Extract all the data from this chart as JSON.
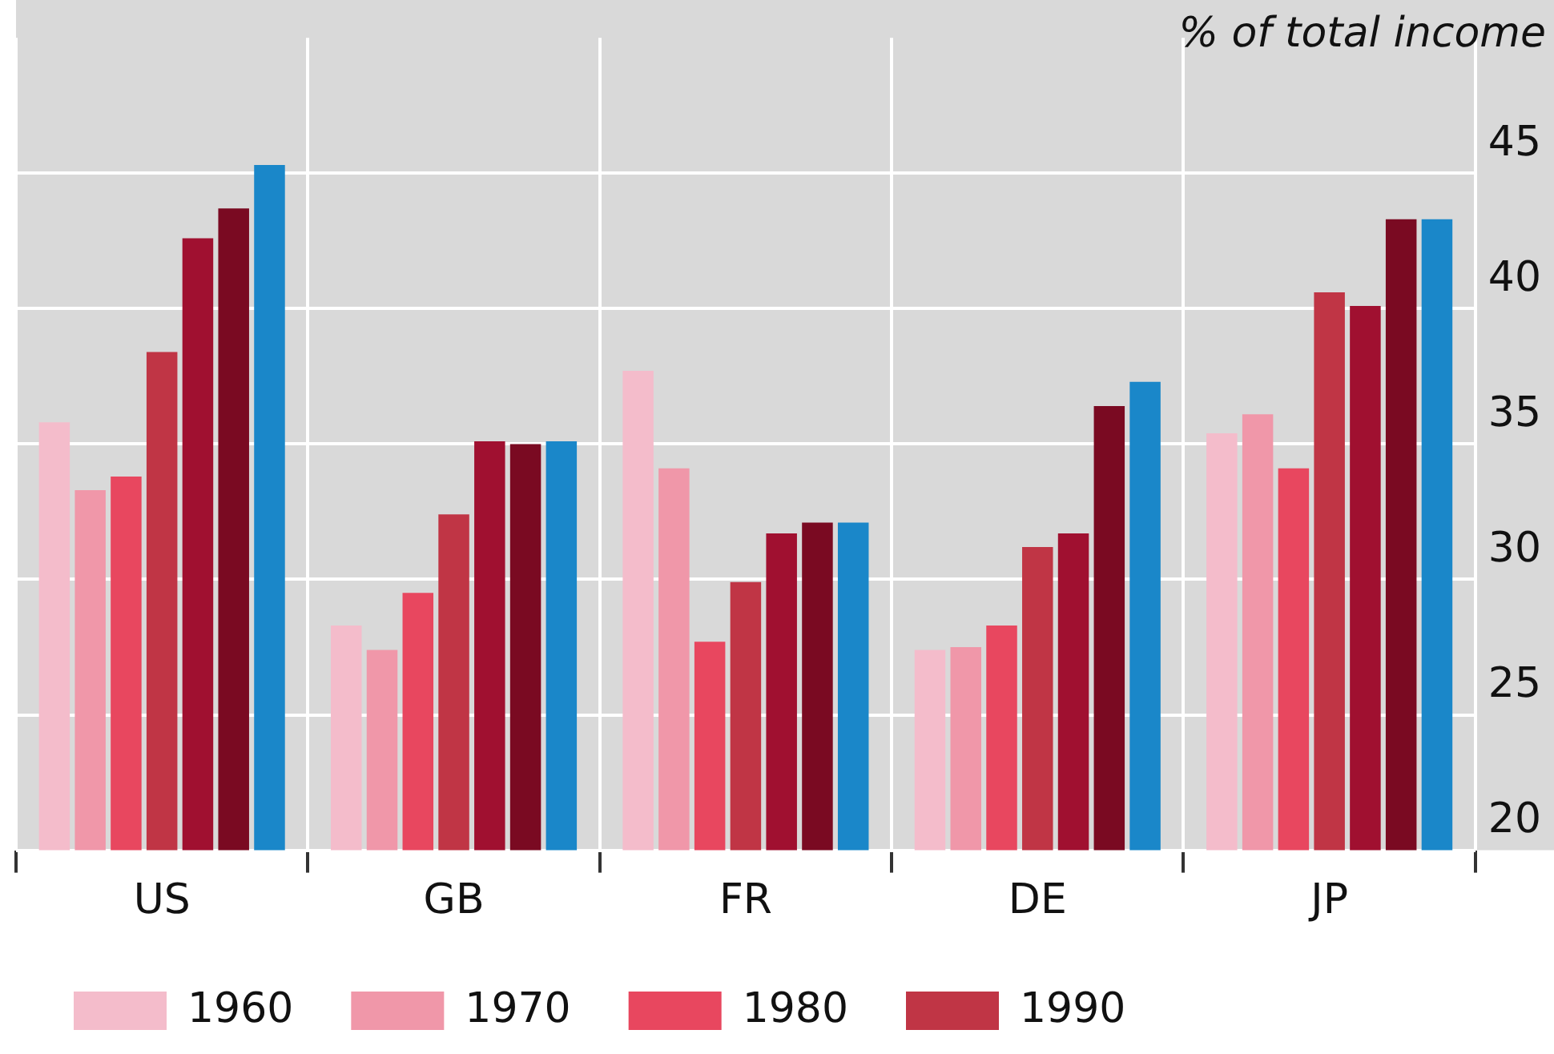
{
  "chart_data": {
    "type": "bar",
    "ylabel": "% of total income",
    "categories": [
      "US",
      "GB",
      "FR",
      "DE",
      "JP"
    ],
    "series": [
      {
        "name": "1960",
        "color": "#f4bccb",
        "values": [
          35.8,
          28.3,
          37.7,
          27.4,
          35.4
        ]
      },
      {
        "name": "1970",
        "color": "#f097a9",
        "values": [
          33.3,
          27.4,
          34.1,
          27.5,
          36.1
        ]
      },
      {
        "name": "1980",
        "color": "#e8475f",
        "values": [
          33.8,
          29.5,
          27.7,
          28.3,
          34.1
        ]
      },
      {
        "name": "1990",
        "color": "#c03545",
        "values": [
          38.4,
          32.4,
          29.9,
          31.2,
          40.6
        ]
      },
      {
        "color": "#a01030",
        "values": [
          42.6,
          35.1,
          31.7,
          31.7,
          40.1
        ]
      },
      {
        "color": "#7a0a22",
        "values": [
          43.7,
          35.0,
          32.1,
          36.4,
          43.3
        ]
      },
      {
        "color": "#1a87c9",
        "values": [
          45.3,
          35.1,
          32.1,
          37.3,
          43.3
        ]
      }
    ],
    "ylim": [
      20,
      50
    ],
    "yticks": [
      20,
      25,
      30,
      35,
      40,
      45
    ],
    "grid": true,
    "legend": "bottom"
  }
}
